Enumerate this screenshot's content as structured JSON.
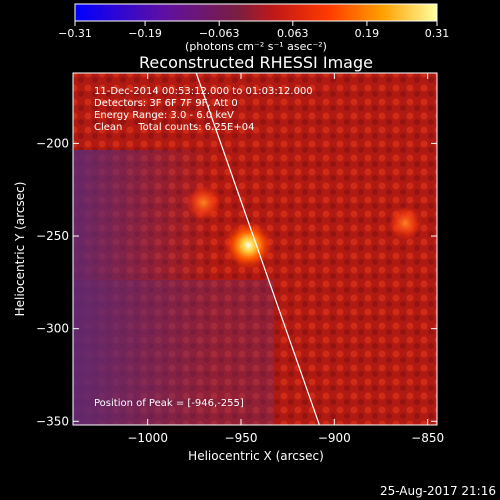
{
  "chart_data": {
    "type": "heatmap",
    "title": "Reconstructed RHESSI Image",
    "xlabel": "Heliocentric X (arcsec)",
    "ylabel": "Heliocentric Y (arcsec)",
    "xlim": [
      -1040,
      -845
    ],
    "ylim": [
      -352,
      -162
    ],
    "x_ticks": [
      -1000,
      -950,
      -900,
      -850
    ],
    "y_ticks": [
      -200,
      -250,
      -300,
      -350
    ],
    "x_tick_labels": [
      "−1000",
      "−950",
      "−900",
      "−850"
    ],
    "y_tick_labels": [
      "−200",
      "−250",
      "−300",
      "−350"
    ],
    "colorbar": {
      "range": [
        -0.31,
        0.31
      ],
      "ticks": [
        -0.31,
        -0.19,
        -0.063,
        0.063,
        0.19,
        0.31
      ],
      "tick_labels": [
        "−0.31",
        "−0.19",
        "−0.063",
        "0.063",
        "0.19",
        "0.31"
      ],
      "units": "(photons cm⁻² s⁻¹ asec⁻²)"
    },
    "annotations": [
      "11-Dec-2014 00:53:12.000 to 01:03:12.000",
      "Detectors: 3F 6F 7F 9F, Att 0",
      "Energy Range: 3.0 - 6.0 keV",
      "Clean     Total counts: 6.25E+04",
      "Position of Peak = [-946,-255]"
    ],
    "peak": {
      "x": -946,
      "y": -255,
      "value": 0.31
    },
    "secondary_sources": [
      {
        "x": -970,
        "y": -232,
        "value": 0.14
      },
      {
        "x": -862,
        "y": -243,
        "value": 0.12
      }
    ],
    "limb_line": [
      [
        -974,
        -162
      ],
      [
        -908,
        -352
      ]
    ],
    "grid": false,
    "legend": "none"
  },
  "timestamp": "25-Aug-2017 21:16",
  "colors": {
    "background": "#000000",
    "text": "#ffffff",
    "colormap": [
      "#0000ff",
      "#5a00a0",
      "#6b2060",
      "#c81414",
      "#ff4000",
      "#ffa000",
      "#ffff80",
      "#ffffff"
    ]
  }
}
